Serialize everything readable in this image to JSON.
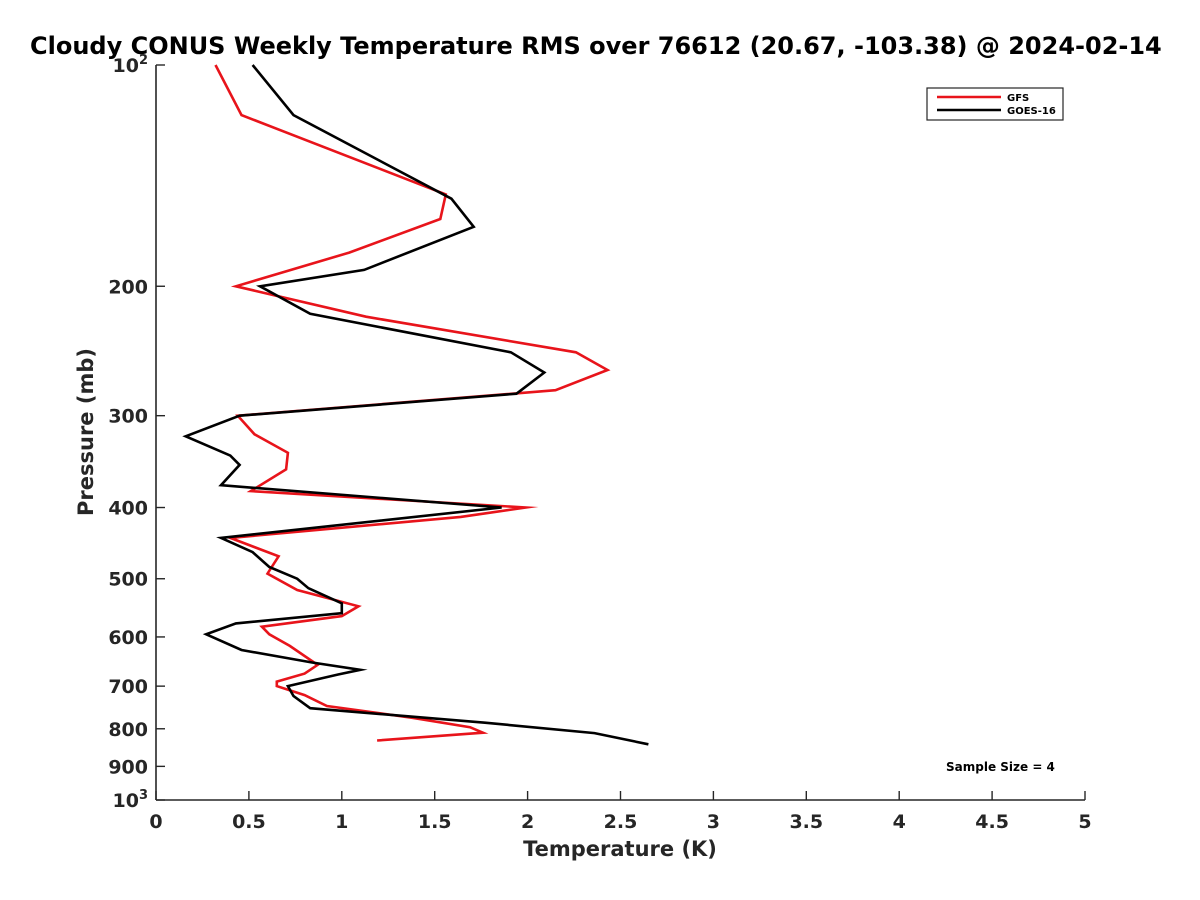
{
  "chart_data": {
    "type": "line",
    "title": "Cloudy CONUS Weekly Temperature RMS over 76612 (20.67, -103.38) @ 2024-02-14",
    "xlabel": "Temperature (K)",
    "ylabel": "Pressure (mb)",
    "xlim": [
      0,
      5
    ],
    "ylim": [
      100,
      1000
    ],
    "y_scale": "log",
    "y_reversed": true,
    "grid": false,
    "legend_position": "top-right",
    "x_ticks": [
      0,
      0.5,
      1,
      1.5,
      2,
      2.5,
      3,
      3.5,
      4,
      4.5,
      5
    ],
    "x_tick_labels": [
      "0",
      "0.5",
      "1",
      "1.5",
      "2",
      "2.5",
      "3",
      "3.5",
      "4",
      "4.5",
      "5"
    ],
    "y_ticks": [
      {
        "value": 100,
        "base": "10",
        "exp": "2"
      },
      {
        "value": 200,
        "label": "200"
      },
      {
        "value": 300,
        "label": "300"
      },
      {
        "value": 400,
        "label": "400"
      },
      {
        "value": 500,
        "label": "500"
      },
      {
        "value": 600,
        "label": "600"
      },
      {
        "value": 700,
        "label": "700"
      },
      {
        "value": 800,
        "label": "800"
      },
      {
        "value": 900,
        "label": "900"
      },
      {
        "value": 1000,
        "base": "10",
        "exp": "3"
      }
    ],
    "series": [
      {
        "name": "GFS",
        "color": "#e8141b",
        "points": [
          [
            0.32,
            100
          ],
          [
            0.46,
            117
          ],
          [
            1.56,
            150
          ],
          [
            1.53,
            162
          ],
          [
            1.04,
            180
          ],
          [
            0.43,
            200
          ],
          [
            1.13,
            220
          ],
          [
            2.26,
            246
          ],
          [
            2.43,
            260
          ],
          [
            2.15,
            277
          ],
          [
            0.44,
            300
          ],
          [
            0.53,
            318
          ],
          [
            0.71,
            337
          ],
          [
            0.7,
            355
          ],
          [
            0.51,
            380
          ],
          [
            1.99,
            400
          ],
          [
            1.64,
            412
          ],
          [
            0.4,
            440
          ],
          [
            0.66,
            466
          ],
          [
            0.6,
            492
          ],
          [
            0.76,
            518
          ],
          [
            1.09,
            545
          ],
          [
            1.0,
            562
          ],
          [
            0.57,
            581
          ],
          [
            0.61,
            595
          ],
          [
            0.72,
            617
          ],
          [
            0.87,
            655
          ],
          [
            0.8,
            673
          ],
          [
            0.65,
            690
          ],
          [
            0.65,
            700
          ],
          [
            0.8,
            720
          ],
          [
            0.92,
            745
          ],
          [
            1.38,
            773
          ],
          [
            1.69,
            796
          ],
          [
            1.76,
            810
          ],
          [
            1.19,
            830
          ]
        ]
      },
      {
        "name": "GOES-16",
        "color": "#000000",
        "points": [
          [
            0.52,
            100
          ],
          [
            0.74,
            117
          ],
          [
            1.59,
            152
          ],
          [
            1.71,
            166
          ],
          [
            1.12,
            190
          ],
          [
            0.56,
            200
          ],
          [
            0.83,
            218
          ],
          [
            1.91,
            246
          ],
          [
            2.09,
            262
          ],
          [
            1.94,
            280
          ],
          [
            0.45,
            300
          ],
          [
            0.16,
            320
          ],
          [
            0.4,
            340
          ],
          [
            0.45,
            350
          ],
          [
            0.35,
            373
          ],
          [
            1.86,
            400
          ],
          [
            0.35,
            440
          ],
          [
            0.52,
            460
          ],
          [
            0.61,
            482
          ],
          [
            0.76,
            500
          ],
          [
            0.82,
            515
          ],
          [
            1.0,
            540
          ],
          [
            1.0,
            557
          ],
          [
            0.43,
            575
          ],
          [
            0.27,
            595
          ],
          [
            0.46,
            625
          ],
          [
            0.84,
            650
          ],
          [
            1.1,
            665
          ],
          [
            0.98,
            675
          ],
          [
            0.71,
            700
          ],
          [
            0.74,
            722
          ],
          [
            0.83,
            750
          ],
          [
            1.77,
            785
          ],
          [
            2.36,
            811
          ],
          [
            2.65,
            840
          ]
        ]
      }
    ],
    "annotations": [
      "Sample Size = 4"
    ]
  }
}
